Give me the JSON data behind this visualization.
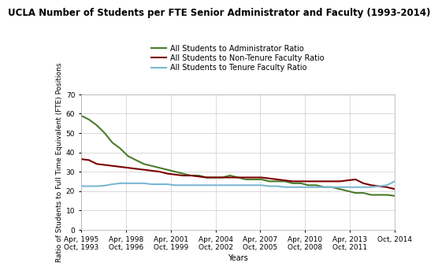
{
  "title": "UCLA Number of Students per FTE Senior Administrator and Faculty (1993-2014)",
  "xlabel": "Years",
  "ylabel": "Ratio of Students to Full Time Equivalent (FTE) Positions",
  "legend": [
    "All Students to Administrator Ratio",
    "All Students to Non-Tenure Faculty Ratio",
    "All Students to Tenure Faculty Ratio"
  ],
  "colors": [
    "#4a7c2a",
    "#7b0000",
    "#7ab8d4"
  ],
  "ylim": [
    0,
    70
  ],
  "yticks": [
    0,
    10,
    20,
    30,
    40,
    50,
    60,
    70
  ],
  "x_tick_positions": [
    0,
    3,
    6,
    9,
    12,
    15,
    18,
    21
  ],
  "x_tick_labels_top": [
    "Apr, 1995",
    "Apr, 1998",
    "Apr, 2001",
    "Apr, 2004",
    "Apr, 2007",
    "Apr, 2010",
    "Apr, 2013",
    ""
  ],
  "x_tick_labels_bot": [
    "Oct, 1993",
    "Oct, 1996",
    "Oct, 1999",
    "Oct, 2002",
    "Oct, 2005",
    "Oct, 2008",
    "Oct, 2011",
    "Oct, 2014"
  ],
  "admin_ratio": [
    59,
    57,
    54,
    50,
    45,
    42,
    38,
    36,
    34,
    33,
    32,
    31,
    30,
    29,
    28,
    28,
    27,
    27,
    27,
    28,
    27,
    26,
    26,
    26,
    25,
    25,
    25,
    24,
    24,
    23,
    23,
    22,
    22,
    21,
    20,
    19,
    19,
    18,
    18,
    18,
    17.5
  ],
  "non_tenure_ratio": [
    36.5,
    36,
    34,
    33.5,
    33,
    32.5,
    32,
    31.5,
    31,
    30.5,
    30,
    29,
    28.5,
    28,
    28,
    27.5,
    27,
    27,
    27,
    27,
    27,
    27,
    27,
    27,
    26.5,
    26,
    25.5,
    25,
    25,
    25,
    25,
    25,
    25,
    25,
    25.5,
    26,
    24,
    23,
    22.5,
    22,
    21
  ],
  "tenure_ratio": [
    22.5,
    22.5,
    22.5,
    22.8,
    23.5,
    24,
    24,
    24,
    24,
    23.5,
    23.5,
    23.5,
    23,
    23,
    23,
    23,
    23,
    23,
    23,
    23,
    23,
    23,
    23,
    23,
    22.5,
    22.5,
    22,
    22,
    22,
    22,
    22,
    22,
    22,
    22,
    22,
    22,
    22,
    22,
    22.5,
    23,
    25
  ],
  "background_color": "#ffffff",
  "grid_color": "#cccccc",
  "title_fontsize": 8.5,
  "legend_fontsize": 7,
  "axis_label_fontsize": 7,
  "tick_fontsize": 6.5
}
